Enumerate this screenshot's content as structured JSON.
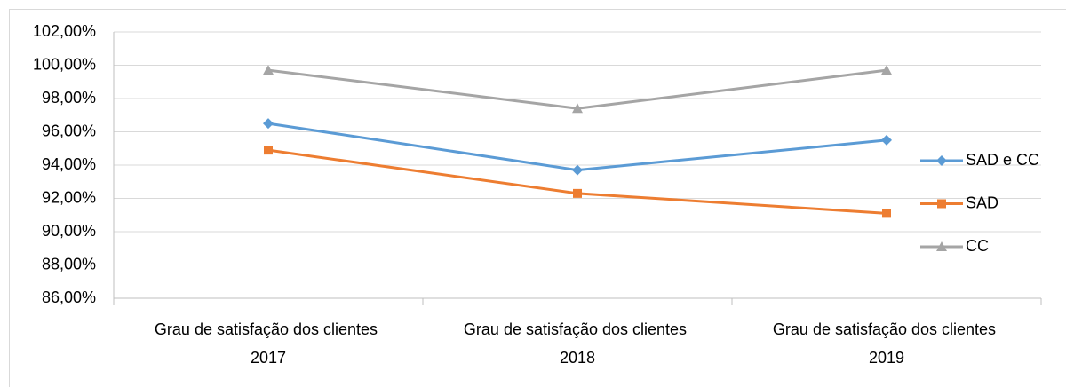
{
  "chart_data": {
    "type": "line",
    "categories": [
      "Grau de satisfação dos clientes 2017",
      "Grau de satisfação dos clientes 2018",
      "Grau de satisfação dos clientes 2019"
    ],
    "series": [
      {
        "name": "SAD e CC",
        "color": "#5b9bd5",
        "marker": "diamond",
        "values": [
          96.5,
          93.7,
          95.5
        ]
      },
      {
        "name": "SAD",
        "color": "#ed7d31",
        "marker": "square",
        "values": [
          94.9,
          92.3,
          91.1
        ]
      },
      {
        "name": "CC",
        "color": "#a5a5a5",
        "marker": "triangle",
        "values": [
          99.7,
          97.4,
          99.7
        ]
      }
    ],
    "ylim": [
      86,
      102
    ],
    "yticks": [
      {
        "value": 86,
        "label": "86,00%"
      },
      {
        "value": 88,
        "label": "88,00%"
      },
      {
        "value": 90,
        "label": "90,00%"
      },
      {
        "value": 92,
        "label": "92,00%"
      },
      {
        "value": 94,
        "label": "94,00%"
      },
      {
        "value": 96,
        "label": "96,00%"
      },
      {
        "value": 98,
        "label": "98,00%"
      },
      {
        "value": 100,
        "label": "100,00%"
      },
      {
        "value": 102,
        "label": "102,00%"
      }
    ],
    "grid": true,
    "legend": "right"
  }
}
